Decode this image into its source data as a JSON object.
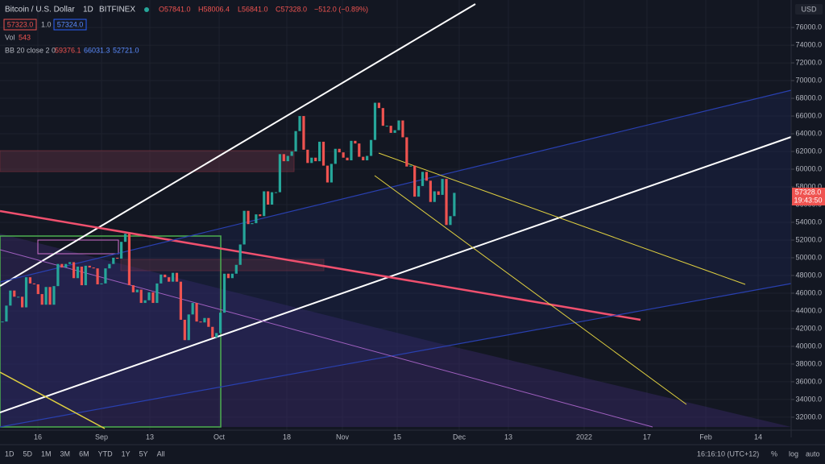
{
  "header": {
    "symbol": "Bitcoin / U.S. Dollar",
    "interval": "1D",
    "exchange": "BITFINEX",
    "ohlc": [
      "O57841.0",
      "H58006.4",
      "L56841.0",
      "C57328.0",
      "−512.0 (−0.89%)"
    ],
    "sell": "57323.0",
    "spread": "1.0",
    "buy": "57324.0",
    "vol_label": "Vol",
    "vol_value": "543",
    "bb_label": "BB 20 close 2 0",
    "bb_values": [
      "59376.1",
      "66031.3",
      "52721.0"
    ]
  },
  "currency": "USD",
  "last_price": "57328.0",
  "countdown": "19:43:50",
  "time_axis": [
    "16",
    "Sep",
    "13",
    "Oct",
    "18",
    "Nov",
    "15",
    "Dec",
    "13",
    "2022",
    "17",
    "Feb",
    "14"
  ],
  "toolbar": {
    "ranges": [
      "1D",
      "5D",
      "1M",
      "3M",
      "6M",
      "YTD",
      "1Y",
      "5Y",
      "All"
    ],
    "clock": "16:16:10 (UTC+12)",
    "options": [
      "%",
      "log",
      "auto"
    ]
  },
  "chart_data": {
    "type": "candlestick",
    "up_color": "#26a69a",
    "down_color": "#ef5350",
    "values": [
      42800,
      44600,
      46300,
      45600,
      45600,
      44400,
      47800,
      47100,
      47000,
      45900,
      44700,
      46700,
      44700,
      46800,
      49300,
      48900,
      49300,
      49500,
      47700,
      49000,
      46900,
      49100,
      48900,
      48800,
      47000,
      47100,
      48800,
      49300,
      50000,
      49900,
      51800,
      52700,
      46900,
      46100,
      46400,
      44900,
      45200,
      46100,
      44900,
      47100,
      48100,
      47800,
      47300,
      48300,
      47300,
      43000,
      40700,
      43600,
      44900,
      42800,
      42700,
      43200,
      42200,
      41000,
      41500,
      43800,
      48200,
      47700,
      48200,
      49200,
      51500,
      55300,
      53800,
      53900,
      54900,
      54700,
      57500,
      56000,
      57400,
      57400,
      61700,
      60900,
      61500,
      62000,
      64300,
      66000,
      62200,
      60700,
      61300,
      60900,
      63100,
      60400,
      58500,
      60600,
      62300,
      61900,
      61300,
      61000,
      63200,
      62900,
      61400,
      61000,
      61500,
      63300,
      67500,
      66900,
      64900,
      64900,
      64100,
      64400,
      65500,
      63600,
      60300,
      60400,
      56900,
      58100,
      59700,
      58700,
      56300,
      57500,
      57100,
      58900,
      53700,
      54700,
      57328
    ],
    "ylim": [
      30900,
      79100
    ],
    "yticks": [
      {
        "value": 76000,
        "label": "76000.0"
      },
      {
        "value": 74000,
        "label": "74000.0"
      },
      {
        "value": 72000,
        "label": "72000.0"
      },
      {
        "value": 70000,
        "label": "70000.0"
      },
      {
        "value": 68000,
        "label": "68000.0"
      },
      {
        "value": 66000,
        "label": "66000.0"
      },
      {
        "value": 64000,
        "label": "64000.0"
      },
      {
        "value": 62000,
        "label": "62000.0"
      },
      {
        "value": 60000,
        "label": "60000.0"
      },
      {
        "value": 58000,
        "label": "58000.0"
      },
      {
        "value": 56000,
        "label": "56000.0"
      },
      {
        "value": 54000,
        "label": "54000.0"
      },
      {
        "value": 52000,
        "label": "52000.0"
      },
      {
        "value": 50000,
        "label": "50000.0"
      },
      {
        "value": 48000,
        "label": "48000.0"
      },
      {
        "value": 46000,
        "label": "46000.0"
      },
      {
        "value": 44000,
        "label": "44000.0"
      },
      {
        "value": 42000,
        "label": "42000.0"
      },
      {
        "value": 40000,
        "label": "40000.0"
      },
      {
        "value": 38000,
        "label": "38000.0"
      },
      {
        "value": 36000,
        "label": "36000.0"
      },
      {
        "value": 34000,
        "label": "34000.0"
      },
      {
        "value": 32000,
        "label": "32000.0"
      }
    ],
    "grid": true
  }
}
